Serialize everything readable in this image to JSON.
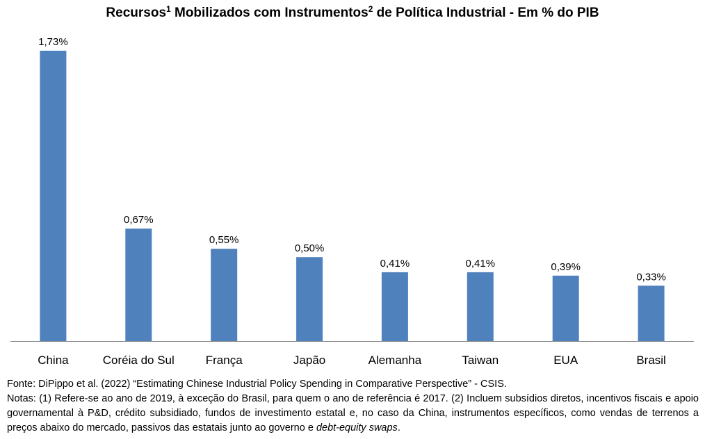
{
  "title": {
    "part1": "Recursos",
    "sup1": "1",
    "part2": " Mobilizados com Instrumentos",
    "sup2": "2",
    "part3": " de Política Industrial - Em % do PIB"
  },
  "chart_data": {
    "type": "bar",
    "categories": [
      "China",
      "Coréia do Sul",
      "França",
      "Japão",
      "Alemanha",
      "Taiwan",
      "EUA",
      "Brasil"
    ],
    "values": [
      1.73,
      0.67,
      0.55,
      0.5,
      0.41,
      0.41,
      0.39,
      0.33
    ],
    "data_labels": [
      "1,73%",
      "0,67%",
      "0,55%",
      "0,50%",
      "0,41%",
      "0,41%",
      "0,39%",
      "0,33%"
    ],
    "unit": "% do PIB",
    "ylim": [
      0,
      1.73
    ],
    "bar_color": "#4f81bd",
    "grid": false,
    "legend": false
  },
  "footer": {
    "source": "Fonte: DiPippo et al. (2022) “Estimating Chinese Industrial Policy Spending in Comparative Perspective” - CSIS.",
    "notes_main": "Notas: (1) Refere-se ao ano de 2019, à exceção do Brasil, para quem o ano de referência é 2017. (2) Incluem subsídios diretos, incentivos fiscais e apoio governamental à P&D, crédito subsidiado, fundos de investimento estatal e, no caso da China, instrumentos específicos, como vendas de terrenos a preços abaixo do mercado, passivos das estatais junto ao governo e ",
    "notes_italic": "debt-equity swaps",
    "notes_end": "."
  }
}
